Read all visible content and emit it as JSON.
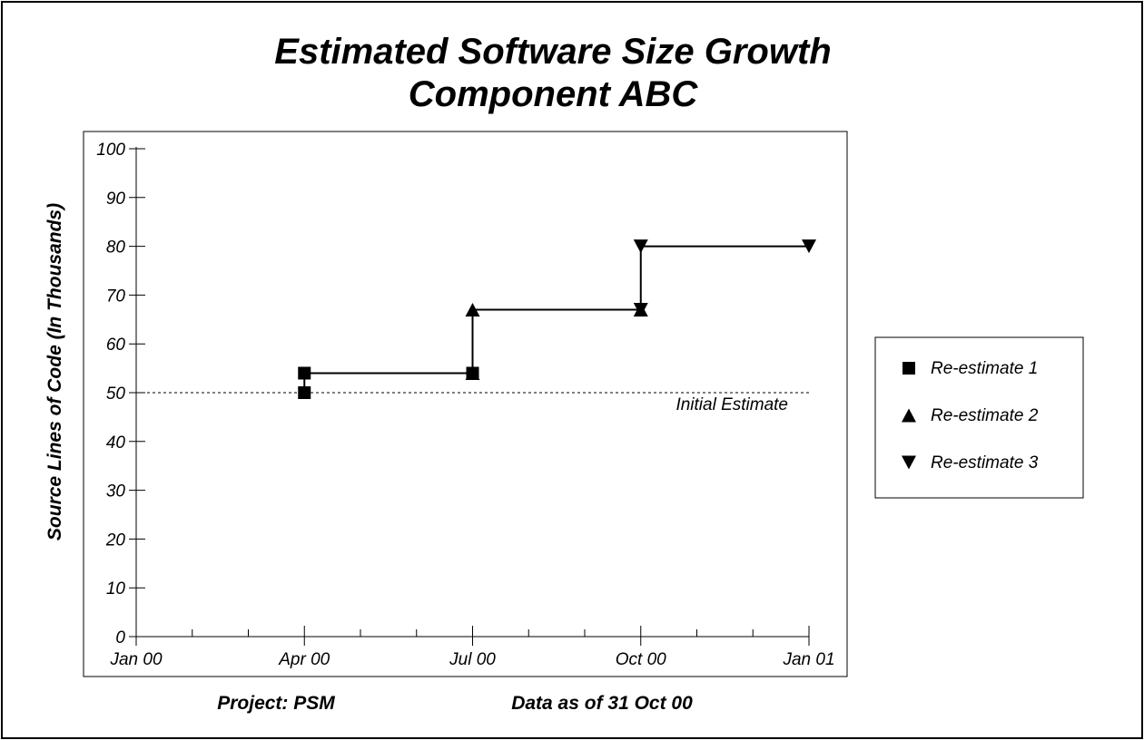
{
  "chart_data": {
    "type": "line",
    "title": "Estimated Software Size Growth",
    "subtitle": "Component ABC",
    "ylabel": "Source Lines of Code (In Thousands)",
    "xlabel": "",
    "ylim": [
      0,
      100
    ],
    "yticks": [
      0,
      10,
      20,
      30,
      40,
      50,
      60,
      70,
      80,
      90,
      100
    ],
    "x_axis_type": "month",
    "xlim": [
      "2000-01",
      "2001-01"
    ],
    "x_tick_labels": [
      {
        "date": "2000-01",
        "label": "Jan 00"
      },
      {
        "date": "2000-04",
        "label": "Apr 00"
      },
      {
        "date": "2000-07",
        "label": "Jul 00"
      },
      {
        "date": "2000-10",
        "label": "Oct 00"
      },
      {
        "date": "2001-01",
        "label": "Jan 01"
      }
    ],
    "grid": false,
    "reference_line": {
      "y": 50,
      "label": "Initial Estimate",
      "style": "dashed"
    },
    "series": [
      {
        "name": "Re-estimate 1",
        "marker": "square",
        "points": [
          {
            "x": "2000-04",
            "y": 50
          },
          {
            "x": "2000-04",
            "y": 54
          },
          {
            "x": "2000-07",
            "y": 54
          }
        ]
      },
      {
        "name": "Re-estimate 2",
        "marker": "triangle-up",
        "points": [
          {
            "x": "2000-07",
            "y": 54
          },
          {
            "x": "2000-07",
            "y": 67
          },
          {
            "x": "2000-10",
            "y": 67
          }
        ]
      },
      {
        "name": "Re-estimate 3",
        "marker": "triangle-down",
        "points": [
          {
            "x": "2000-10",
            "y": 67
          },
          {
            "x": "2000-10",
            "y": 80
          },
          {
            "x": "2001-01",
            "y": 80
          }
        ]
      }
    ],
    "legend": {
      "position": "right",
      "entries": [
        "Re-estimate 1",
        "Re-estimate 2",
        "Re-estimate 3"
      ]
    }
  },
  "footer": {
    "project": "Project: PSM",
    "data_as_of": "Data as of 31 Oct 00"
  }
}
